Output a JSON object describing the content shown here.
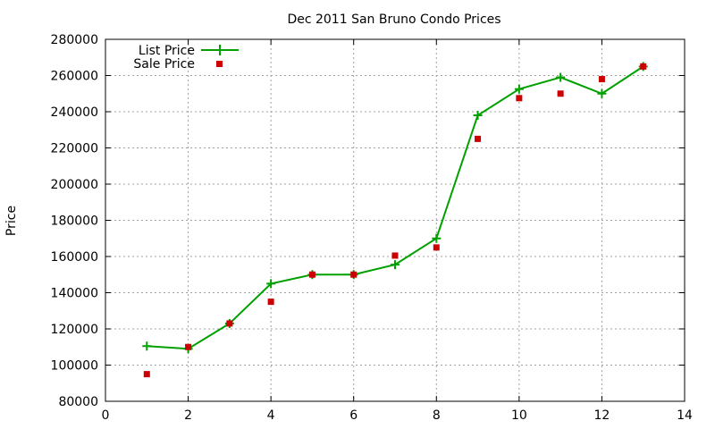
{
  "chart_data": {
    "type": "line",
    "title": "Dec 2011 San Bruno Condo Prices",
    "xlabel": "",
    "ylabel": "Price",
    "xlim": [
      0,
      14
    ],
    "ylim": [
      80000,
      280000
    ],
    "xticks": [
      0,
      2,
      4,
      6,
      8,
      10,
      12,
      14
    ],
    "yticks": [
      80000,
      100000,
      120000,
      140000,
      160000,
      180000,
      200000,
      220000,
      240000,
      260000,
      280000
    ],
    "grid": true,
    "legend_position": "top-left",
    "series": [
      {
        "name": "List Price",
        "style": "line-points",
        "marker": "plus",
        "color": "#00a000",
        "x": [
          1,
          2,
          3,
          4,
          5,
          6,
          7,
          8,
          9,
          10,
          11,
          12,
          13
        ],
        "y": [
          110500,
          109000,
          123000,
          145000,
          150000,
          150000,
          155500,
          170000,
          238000,
          252500,
          259000,
          250000,
          265000
        ]
      },
      {
        "name": "Sale Price",
        "style": "points",
        "marker": "square",
        "color": "#cc0000",
        "x": [
          1,
          2,
          3,
          4,
          5,
          6,
          7,
          8,
          9,
          10,
          11,
          12,
          13
        ],
        "y": [
          95000,
          110000,
          123000,
          135000,
          150000,
          150000,
          160500,
          165000,
          225000,
          247500,
          250000,
          258000,
          265000
        ]
      }
    ]
  }
}
